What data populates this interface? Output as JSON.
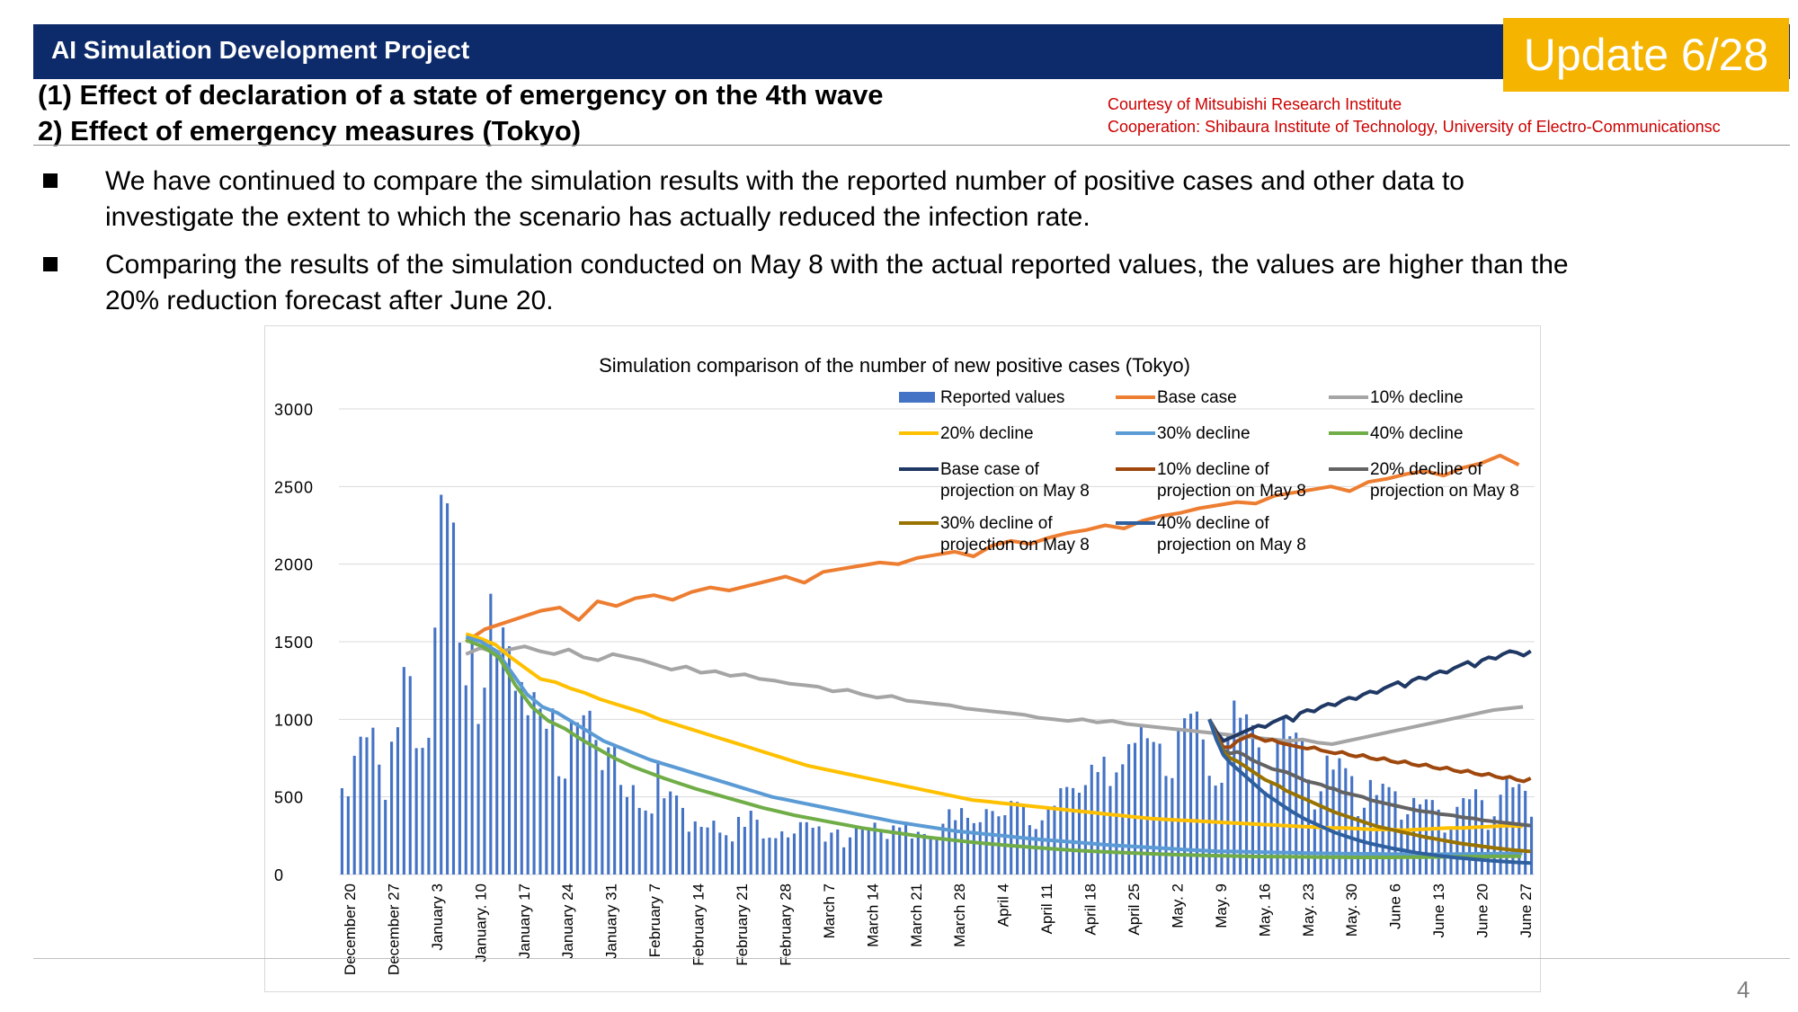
{
  "header": {
    "title": "AI Simulation Development Project",
    "badge": "Update 6/28"
  },
  "subtitles": [
    "(1) Effect of declaration of a state of emergency on the 4th wave",
    "2) Effect of emergency measures (Tokyo)"
  ],
  "credits": [
    "Courtesy of Mitsubishi Research Institute",
    "Cooperation: Shibaura Institute of Technology, University of Electro-Communicationsc"
  ],
  "bullets": [
    {
      "line1": "We have continued to compare the simulation results with the reported number of positive cases and other data to",
      "line2": "investigate the extent to which the scenario has actually reduced the infection rate."
    },
    {
      "line1": "Comparing the results of the simulation conducted on May 8 with the actual reported values, the values are higher than the",
      "line2": "20% reduction forecast after June 20."
    }
  ],
  "page_number": "4",
  "colors": {
    "navy": "#0d2a6a",
    "badge": "#f5b400",
    "credit": "#cc0000"
  },
  "chart_data": {
    "type": "bar",
    "title": "Simulation comparison of the number of new positive cases  (Tokyo)",
    "ylim": [
      0,
      3000
    ],
    "yticks": [
      "0",
      "500",
      "1000",
      "1500",
      "2000",
      "2500",
      "3000"
    ],
    "x_tick_labels": [
      "December 20",
      "December 27",
      "January 3",
      "January. 10",
      "January 17",
      "January 24",
      "January 31",
      "February 7",
      "February 14",
      "February 21",
      "February 28",
      "March 7",
      "March 14",
      "March 21",
      "March 28",
      "April 4",
      "April 11",
      "April 18",
      "April 25",
      "May. 2",
      "May. 9",
      "May. 16",
      "May. 23",
      "May. 30",
      "June 6",
      "June 13",
      "June 20",
      "June 27"
    ],
    "grid": true,
    "legend_position": "top-right",
    "bar_series": {
      "name": "Reported values",
      "color": "#4472c4",
      "values": [
        556,
        504,
        765,
        888,
        884,
        946,
        708,
        481,
        856,
        949,
        1337,
        1278,
        814,
        816,
        881,
        1591,
        2447,
        2392,
        2268,
        1494,
        1219,
        1537,
        970,
        1204,
        1809,
        1433,
        1592,
        1471,
        1184,
        1240,
        1026,
        1175,
        1070,
        939,
        1070,
        633,
        618,
        986,
        980,
        1026,
        1055,
        867,
        673,
        819,
        838,
        577,
        499,
        576,
        429,
        412,
        393,
        735,
        491,
        535,
        509,
        429,
        276,
        342,
        307,
        303,
        347,
        270,
        253,
        213,
        371,
        307,
        411,
        353,
        232,
        237,
        234,
        278,
        239,
        264,
        337,
        337,
        301,
        310,
        212,
        270,
        290,
        175,
        239,
        304,
        294,
        303,
        334,
        272,
        229,
        316,
        303,
        340,
        232,
        275,
        261,
        240,
        237,
        327,
        420,
        350,
        428,
        365,
        331,
        337,
        421,
        409,
        375,
        382,
        474,
        468,
        440,
        318,
        293,
        349,
        422,
        443,
        556,
        564,
        557,
        527,
        576,
        707,
        660,
        759,
        570,
        658,
        710,
        840,
        848,
        963,
        878,
        854,
        843,
        635,
        621,
        925,
        1007,
        1036,
        1050,
        870,
        636,
        573,
        591,
        903,
        1121,
        1010,
        1032,
        962,
        819,
        535,
        596,
        849,
        1010,
        891,
        914,
        866,
        612,
        419,
        536,
        766,
        676,
        749,
        685,
        634,
        376,
        430,
        609,
        512,
        585,
        563,
        536,
        353,
        388,
        493,
        452,
        484,
        480,
        418,
        270,
        296,
        436,
        492,
        485,
        549,
        479,
        288,
        375,
        514,
        619,
        562,
        583,
        539,
        372
      ]
    },
    "series": [
      {
        "name": "Base case",
        "color": "#ed7d31",
        "x_start": 20,
        "values": [
          1500,
          1580,
          1620,
          1660,
          1700,
          1720,
          1640,
          1760,
          1730,
          1780,
          1800,
          1770,
          1820,
          1850,
          1830,
          1860,
          1890,
          1920,
          1880,
          1950,
          1970,
          1990,
          2010,
          2000,
          2040,
          2060,
          2080,
          2050,
          2120,
          2150,
          2130,
          2170,
          2200,
          2220,
          2250,
          2230,
          2280,
          2310,
          2330,
          2360,
          2380,
          2400,
          2390,
          2440,
          2460,
          2480,
          2500,
          2470,
          2530,
          2550,
          2580,
          2600,
          2570,
          2620,
          2650,
          2700,
          2640
        ]
      },
      {
        "name": "10% decline",
        "color": "#a5a5a5",
        "x_start": 20,
        "values": [
          1420,
          1460,
          1430,
          1450,
          1470,
          1440,
          1420,
          1450,
          1400,
          1380,
          1420,
          1400,
          1380,
          1350,
          1320,
          1340,
          1300,
          1310,
          1280,
          1290,
          1260,
          1250,
          1230,
          1220,
          1210,
          1180,
          1190,
          1160,
          1140,
          1150,
          1120,
          1110,
          1100,
          1090,
          1070,
          1060,
          1050,
          1040,
          1030,
          1010,
          1000,
          990,
          1000,
          980,
          990,
          970,
          960,
          950,
          940,
          930,
          920,
          910,
          900,
          890,
          880,
          870,
          860,
          870,
          850,
          840,
          860,
          880,
          900,
          920,
          940,
          960,
          980,
          1000,
          1020,
          1040,
          1060,
          1070,
          1080
        ]
      },
      {
        "name": "20% decline",
        "color": "#ffc000",
        "x_start": 20,
        "values": [
          1550,
          1520,
          1480,
          1400,
          1330,
          1260,
          1240,
          1200,
          1170,
          1130,
          1100,
          1070,
          1040,
          1000,
          970,
          940,
          910,
          880,
          850,
          820,
          790,
          760,
          730,
          700,
          680,
          660,
          640,
          620,
          600,
          580,
          560,
          540,
          520,
          500,
          480,
          470,
          460,
          450,
          440,
          430,
          420,
          410,
          400,
          390,
          380,
          370,
          360,
          355,
          350,
          345,
          340,
          335,
          330,
          325,
          320,
          315,
          310,
          305,
          300,
          300,
          295,
          290,
          290,
          285,
          290,
          295,
          300,
          300,
          305,
          310,
          315,
          310
        ]
      },
      {
        "name": "30% decline",
        "color": "#5b9bd5",
        "x_start": 20,
        "values": [
          1530,
          1500,
          1440,
          1300,
          1160,
          1080,
          1040,
          980,
          920,
          860,
          820,
          780,
          740,
          710,
          680,
          650,
          620,
          590,
          560,
          530,
          500,
          480,
          460,
          440,
          420,
          400,
          380,
          360,
          340,
          325,
          310,
          295,
          280,
          270,
          260,
          250,
          240,
          230,
          222,
          214,
          206,
          198,
          190,
          184,
          178,
          172,
          166,
          160,
          155,
          150,
          148,
          146,
          144,
          142,
          140,
          138,
          136,
          135,
          134,
          133,
          132,
          131,
          130,
          130,
          131,
          132,
          133,
          134,
          135,
          136
        ]
      },
      {
        "name": "40% decline",
        "color": "#70ad47",
        "x_start": 20,
        "values": [
          1510,
          1470,
          1400,
          1220,
          1080,
          990,
          940,
          870,
          810,
          750,
          700,
          660,
          620,
          585,
          550,
          520,
          490,
          460,
          430,
          405,
          380,
          360,
          340,
          320,
          300,
          285,
          270,
          255,
          240,
          228,
          216,
          205,
          195,
          186,
          178,
          170,
          162,
          155,
          150,
          145,
          140,
          136,
          132,
          128,
          125,
          122,
          120,
          118,
          116,
          115,
          114,
          113,
          112,
          111,
          110,
          110,
          110,
          111,
          112,
          113,
          114,
          115,
          116,
          117,
          118
        ]
      },
      {
        "name": "Base case of projection on May 8",
        "color": "#1f3864",
        "x_start": 140,
        "values": [
          1000,
          920,
          860,
          880,
          900,
          920,
          940,
          960,
          950,
          980,
          1000,
          1020,
          990,
          1040,
          1060,
          1050,
          1080,
          1100,
          1090,
          1120,
          1140,
          1130,
          1160,
          1180,
          1170,
          1200,
          1220,
          1240,
          1210,
          1250,
          1270,
          1260,
          1290,
          1310,
          1300,
          1330,
          1350,
          1370,
          1340,
          1380,
          1400,
          1390,
          1420,
          1440,
          1430,
          1410,
          1440
        ]
      },
      {
        "name": "10% decline of projection on May 8",
        "color": "#9e480e",
        "x_start": 140,
        "values": [
          1000,
          900,
          820,
          820,
          860,
          880,
          900,
          880,
          860,
          870,
          850,
          840,
          830,
          820,
          810,
          820,
          800,
          790,
          780,
          790,
          770,
          760,
          770,
          750,
          740,
          750,
          730,
          720,
          730,
          710,
          700,
          710,
          690,
          680,
          690,
          670,
          660,
          670,
          650,
          640,
          650,
          630,
          620,
          630,
          610,
          600,
          620
        ]
      },
      {
        "name": "20% decline of projection on May 8",
        "color": "#636363",
        "x_start": 140,
        "values": [
          1000,
          890,
          800,
          780,
          790,
          770,
          740,
          720,
          700,
          680,
          670,
          660,
          640,
          620,
          600,
          590,
          580,
          560,
          550,
          530,
          520,
          510,
          500,
          480,
          470,
          460,
          450,
          440,
          430,
          420,
          410,
          405,
          400,
          390,
          385,
          380,
          370,
          365,
          360,
          350,
          345,
          340,
          335,
          330,
          325,
          320,
          315
        ]
      },
      {
        "name": "30% decline of projection on May 8",
        "color": "#997300",
        "x_start": 140,
        "values": [
          1000,
          880,
          790,
          750,
          730,
          700,
          670,
          640,
          610,
          590,
          570,
          540,
          520,
          500,
          480,
          460,
          440,
          420,
          400,
          385,
          370,
          355,
          340,
          325,
          310,
          300,
          290,
          280,
          270,
          260,
          250,
          240,
          232,
          224,
          216,
          208,
          200,
          194,
          188,
          182,
          176,
          170,
          165,
          160,
          156,
          152,
          148
        ]
      },
      {
        "name": "40% decline of projection on May 8",
        "color": "#2e5f9e",
        "x_start": 140,
        "values": [
          1000,
          870,
          770,
          720,
          680,
          640,
          600,
          560,
          520,
          490,
          460,
          430,
          400,
          375,
          350,
          330,
          310,
          290,
          270,
          255,
          240,
          225,
          212,
          200,
          190,
          180,
          170,
          162,
          154,
          146,
          138,
          132,
          126,
          120,
          115,
          110,
          106,
          102,
          98,
          94,
          90,
          87,
          84,
          81,
          78,
          76,
          74
        ]
      }
    ]
  }
}
